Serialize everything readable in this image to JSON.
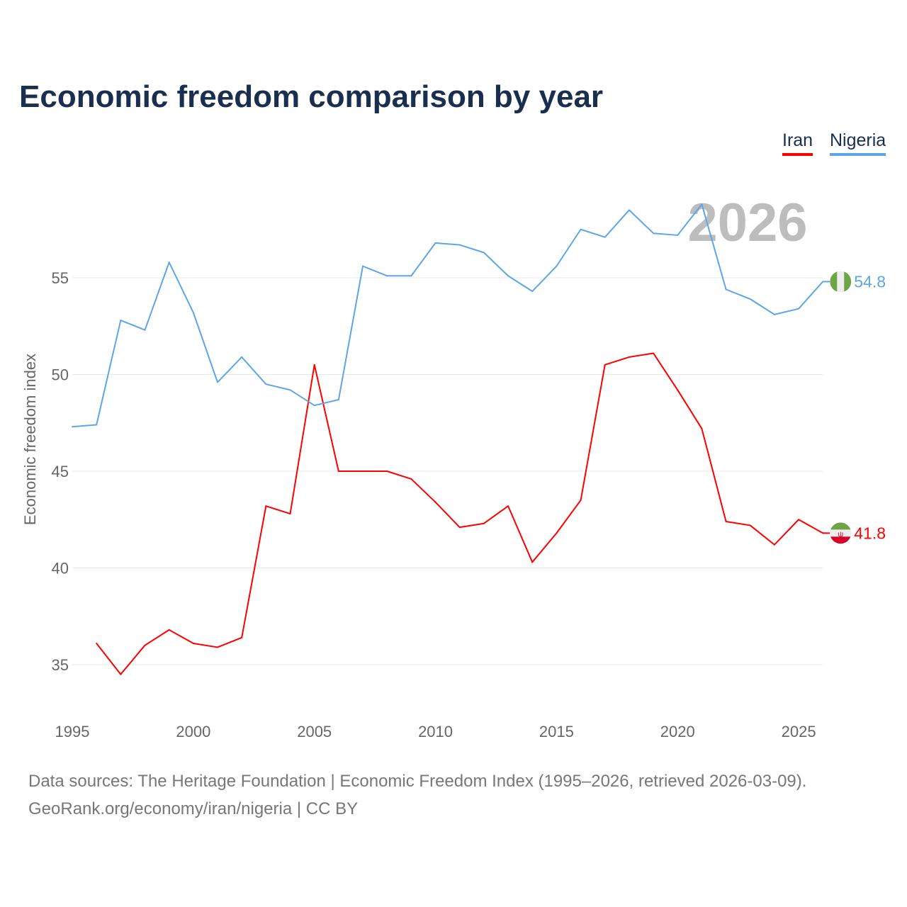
{
  "title": "Economic freedom comparison by year",
  "footer": {
    "line1": "Data sources: The Heritage Foundation | Economic Freedom Index (1995–2026, retrieved 2026-03-09).",
    "line2": "GeoRank.org/economy/iran/nigeria | CC BY"
  },
  "chart_data": {
    "type": "line",
    "title": "Economic freedom comparison by year",
    "xlabel": "",
    "ylabel": "Economic freedom index",
    "watermark_year": "2026",
    "xlim": [
      1995,
      2026
    ],
    "ylim": [
      32.5,
      60
    ],
    "xticks": [
      1995,
      2000,
      2005,
      2010,
      2015,
      2020,
      2025
    ],
    "yticks": [
      35,
      40,
      45,
      50,
      55
    ],
    "grid": true,
    "legend_position": "top-right",
    "series": [
      {
        "name": "Iran",
        "color": "#ff0000",
        "flag": "iran-flag",
        "end_label": "41.8",
        "x": [
          1996,
          1997,
          1998,
          1999,
          2000,
          2001,
          2002,
          2003,
          2004,
          2005,
          2006,
          2007,
          2008,
          2009,
          2010,
          2011,
          2012,
          2013,
          2014,
          2015,
          2016,
          2017,
          2018,
          2019,
          2020,
          2021,
          2022,
          2023,
          2024,
          2025,
          2026
        ],
        "y": [
          36.1,
          34.5,
          36.0,
          36.8,
          36.1,
          35.9,
          36.4,
          43.2,
          42.8,
          50.5,
          45.0,
          45.0,
          45.0,
          44.6,
          43.4,
          42.1,
          42.3,
          43.2,
          40.3,
          41.8,
          43.5,
          50.5,
          50.9,
          51.1,
          49.2,
          47.2,
          42.4,
          42.2,
          41.2,
          42.5,
          41.8
        ]
      },
      {
        "name": "Nigeria",
        "color": "#5ea5e8",
        "flag": "nigeria-flag",
        "end_label": "54.8",
        "x": [
          1995,
          1996,
          1997,
          1998,
          1999,
          2000,
          2001,
          2002,
          2003,
          2004,
          2005,
          2006,
          2007,
          2008,
          2009,
          2010,
          2011,
          2012,
          2013,
          2014,
          2015,
          2016,
          2017,
          2018,
          2019,
          2020,
          2021,
          2022,
          2023,
          2024,
          2025,
          2026
        ],
        "y": [
          47.3,
          47.4,
          52.8,
          52.3,
          55.8,
          53.2,
          49.6,
          50.9,
          49.5,
          49.2,
          48.4,
          48.7,
          55.6,
          55.1,
          55.1,
          56.8,
          56.7,
          56.3,
          55.1,
          54.3,
          55.6,
          57.5,
          57.1,
          58.5,
          57.3,
          57.2,
          58.8,
          54.4,
          53.9,
          53.1,
          53.4,
          54.8
        ]
      }
    ]
  }
}
